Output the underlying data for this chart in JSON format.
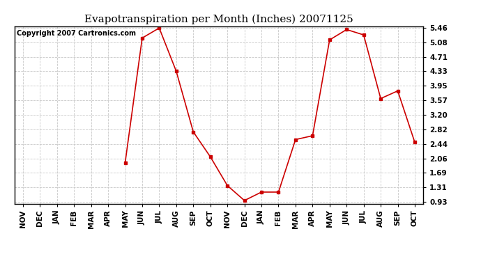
{
  "title": "Evapotranspiration per Month (Inches) 20071125",
  "copyright": "Copyright 2007 Cartronics.com",
  "x_labels": [
    "NOV",
    "DEC",
    "JAN",
    "FEB",
    "MAR",
    "APR",
    "MAY",
    "JUN",
    "JUL",
    "AUG",
    "SEP",
    "OCT",
    "NOV",
    "DEC",
    "JAN",
    "FEB",
    "MAR",
    "APR",
    "MAY",
    "JUN",
    "JUL",
    "AUG",
    "SEP",
    "OCT"
  ],
  "y_values": [
    null,
    null,
    null,
    null,
    null,
    null,
    1.95,
    5.2,
    5.46,
    4.33,
    2.75,
    2.1,
    1.35,
    0.96,
    1.18,
    1.18,
    2.55,
    2.65,
    5.15,
    5.42,
    5.28,
    3.62,
    3.82,
    2.48
  ],
  "y_ticks": [
    0.93,
    1.31,
    1.69,
    2.06,
    2.44,
    2.82,
    3.2,
    3.57,
    3.95,
    4.33,
    4.71,
    5.08,
    5.46
  ],
  "y_tick_labels": [
    "0.93",
    "1.31",
    "1.69",
    "2.06",
    "2.44",
    "2.82",
    "3.20",
    "3.57",
    "3.95",
    "4.33",
    "4.71",
    "5.08",
    "5.46"
  ],
  "y_min": 0.93,
  "y_max": 5.46,
  "line_color": "#cc0000",
  "marker": "s",
  "marker_size": 3,
  "background_color": "#ffffff",
  "grid_color": "#c8c8c8",
  "title_fontsize": 11,
  "tick_fontsize": 7.5,
  "copyright_fontsize": 7
}
